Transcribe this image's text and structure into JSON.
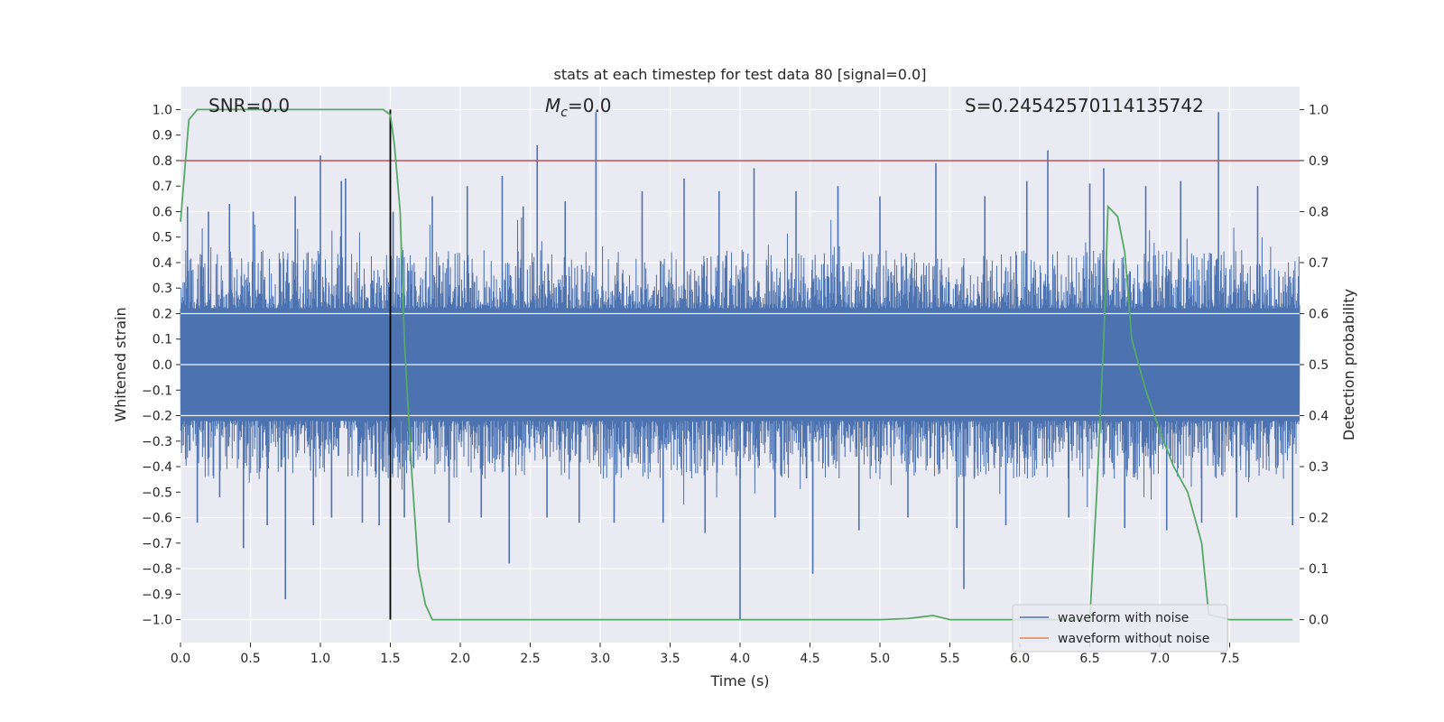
{
  "chart_data": {
    "type": "line",
    "title": "stats at each timestep for test data 80 [signal=0.0]",
    "xlabel": "Time (s)",
    "ylabel_left": "Whitened strain",
    "ylabel_right": "Detection probability",
    "xlim": [
      0.0,
      8.0
    ],
    "ylim_left": [
      -1.09,
      1.09
    ],
    "ylim_right": [
      -0.045,
      1.045
    ],
    "x_ticks": [
      0.0,
      0.5,
      1.0,
      1.5,
      2.0,
      2.5,
      3.0,
      3.5,
      4.0,
      4.5,
      5.0,
      5.5,
      6.0,
      6.5,
      7.0,
      7.5
    ],
    "x_tick_labels": [
      "0.0",
      "0.5",
      "1.0",
      "1.5",
      "2.0",
      "2.5",
      "3.0",
      "3.5",
      "4.0",
      "4.5",
      "5.0",
      "5.5",
      "6.0",
      "6.5",
      "7.0",
      "7.5"
    ],
    "y_left_ticks": [
      -1.0,
      -0.9,
      -0.8,
      -0.7,
      -0.6,
      -0.5,
      -0.4,
      -0.3,
      -0.2,
      -0.1,
      0.0,
      0.1,
      0.2,
      0.3,
      0.4,
      0.5,
      0.6,
      0.7,
      0.8,
      0.9,
      1.0
    ],
    "y_left_tick_labels": [
      "−1.0",
      "−0.9",
      "−0.8",
      "−0.7",
      "−0.6",
      "−0.5",
      "−0.4",
      "−0.3",
      "−0.2",
      "−0.1",
      "0.0",
      "0.1",
      "0.2",
      "0.3",
      "0.4",
      "0.5",
      "0.6",
      "0.7",
      "0.8",
      "0.9",
      "1.0"
    ],
    "y_right_ticks": [
      0.0,
      0.1,
      0.2,
      0.3,
      0.4,
      0.5,
      0.6,
      0.7,
      0.8,
      0.9,
      1.0
    ],
    "y_right_tick_labels": [
      "0.0",
      "0.1",
      "0.2",
      "0.3",
      "0.4",
      "0.5",
      "0.6",
      "0.7",
      "0.8",
      "0.9",
      "1.0"
    ],
    "grid": true,
    "legend_position": "lower-right",
    "annotations": [
      {
        "text": "SNR=0.0",
        "x": 0.2
      },
      {
        "text_main": "M",
        "text_sub": "c",
        "text_rest": "=0.0",
        "x": 2.6
      },
      {
        "text": "S=0.24542570114135742",
        "x": 5.6
      }
    ],
    "vertical_line_x": 1.5,
    "threshold_probability": 0.9,
    "series": [
      {
        "name": "waveform with noise",
        "color": "#4c72b0",
        "axis": "left",
        "noise_envelope": {
          "typical_max": 0.45,
          "typical_min": -0.45
        },
        "x": [
          0.05,
          0.12,
          0.2,
          0.28,
          0.35,
          0.45,
          0.52,
          0.62,
          0.75,
          0.82,
          0.95,
          1.0,
          1.08,
          1.15,
          1.18,
          1.3,
          1.42,
          1.52,
          1.6,
          1.8,
          1.92,
          2.05,
          2.15,
          2.3,
          2.35,
          2.45,
          2.55,
          2.62,
          2.75,
          2.85,
          2.97,
          3.1,
          3.3,
          3.45,
          3.6,
          3.75,
          3.85,
          4.0,
          4.1,
          4.25,
          4.4,
          4.52,
          4.7,
          4.85,
          5.0,
          5.2,
          5.4,
          5.55,
          5.6,
          5.75,
          5.9,
          6.05,
          6.2,
          6.35,
          6.5,
          6.6,
          6.75,
          6.9,
          7.05,
          7.15,
          7.3,
          7.42,
          7.55,
          7.7,
          7.95
        ],
        "y": [
          0.62,
          -0.62,
          0.6,
          -0.52,
          0.63,
          -0.72,
          0.6,
          -0.63,
          -0.92,
          0.66,
          -0.63,
          0.82,
          -0.6,
          0.72,
          0.73,
          -0.62,
          -0.63,
          0.6,
          -0.6,
          0.66,
          -0.62,
          0.7,
          -0.6,
          0.74,
          -0.78,
          0.62,
          0.86,
          -0.6,
          0.64,
          -0.62,
          0.99,
          -0.62,
          0.68,
          -0.62,
          0.73,
          -0.66,
          0.68,
          -1.0,
          0.77,
          -0.6,
          0.68,
          -0.82,
          0.7,
          -0.65,
          0.66,
          -0.6,
          0.79,
          -0.64,
          -0.88,
          0.66,
          -0.63,
          0.72,
          0.84,
          -0.6,
          0.71,
          0.77,
          -0.64,
          0.7,
          -0.65,
          0.72,
          -0.62,
          0.99,
          -0.6,
          0.7,
          -0.63
        ]
      },
      {
        "name": "waveform without noise",
        "color": "#dd8452",
        "axis": "left",
        "x": [],
        "y": []
      },
      {
        "name": "detection probability",
        "color": "#55a868",
        "axis": "right",
        "x": [
          0.0,
          0.06,
          0.12,
          0.2,
          0.5,
          1.0,
          1.45,
          1.5,
          1.53,
          1.57,
          1.6,
          1.65,
          1.7,
          1.75,
          1.8,
          1.85,
          2.0,
          3.0,
          4.0,
          5.0,
          5.2,
          5.38,
          5.5,
          6.0,
          6.5,
          6.55,
          6.6,
          6.63,
          6.7,
          6.75,
          6.8,
          6.9,
          7.0,
          7.1,
          7.2,
          7.25,
          7.3,
          7.35,
          7.5,
          7.95
        ],
        "y": [
          0.78,
          0.98,
          1.0,
          1.0,
          1.0,
          1.0,
          1.0,
          0.99,
          0.93,
          0.8,
          0.55,
          0.3,
          0.1,
          0.03,
          0.0,
          0.0,
          0.0,
          0.0,
          0.0,
          0.0,
          0.002,
          0.008,
          0.0,
          0.0,
          0.0,
          0.25,
          0.55,
          0.81,
          0.79,
          0.72,
          0.55,
          0.45,
          0.37,
          0.3,
          0.25,
          0.2,
          0.15,
          0.01,
          0.0,
          0.0
        ]
      }
    ]
  }
}
